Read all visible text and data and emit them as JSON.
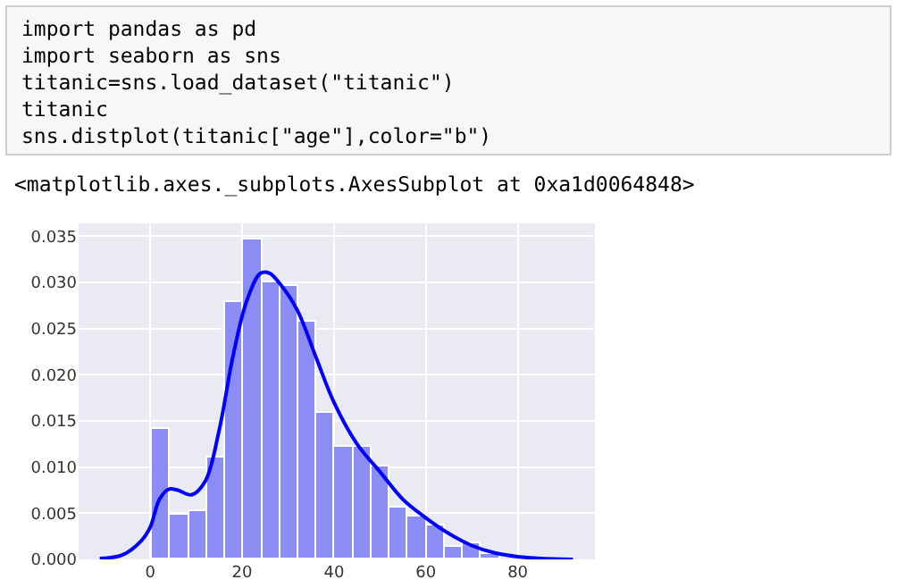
{
  "chart_data": {
    "type": "histogram",
    "annotations": [
      "import pandas as pd",
      "import seaborn as sns",
      "titanic=sns.load_dataset(\"titanic\")",
      "titanic",
      "sns.distplot(titanic[\"age\"],color=\"b\")",
      "<matplotlib.axes._subplots.AxesSubplot at 0xa1d0064848>"
    ],
    "bins": [
      0.4,
      4.4,
      8.4,
      12.3,
      16.3,
      20.3,
      24.3,
      28.3,
      32.2,
      36.2,
      40.2,
      44.2,
      48.2,
      52.1,
      56.1,
      60.1,
      64.1,
      68.1,
      72.0,
      76.0
    ],
    "values": [
      0.0141,
      0.0048,
      0.0052,
      0.011,
      0.0279,
      0.0346,
      0.03,
      0.0297,
      0.0257,
      0.0158,
      0.0122,
      0.0122,
      0.0101,
      0.0056,
      0.0046,
      0.0037,
      0.0014,
      0.0017,
      0.0005
    ],
    "color": "#8c8cf5",
    "series": [
      {
        "type": "line",
        "color": "#0000ff",
        "x": [
          -11,
          -6,
          -2,
          0,
          2,
          4,
          6,
          9,
          12,
          15,
          18,
          21,
          24,
          26,
          28,
          32,
          36,
          40,
          45,
          50,
          55,
          60,
          65,
          70,
          75,
          80,
          85,
          92
        ],
        "values": [
          0.0001,
          0.0005,
          0.002,
          0.0035,
          0.0065,
          0.0076,
          0.0075,
          0.007,
          0.0085,
          0.014,
          0.022,
          0.028,
          0.031,
          0.031,
          0.03,
          0.027,
          0.022,
          0.017,
          0.0125,
          0.0095,
          0.0065,
          0.0045,
          0.0028,
          0.0015,
          0.0007,
          0.0003,
          0.0001,
          0.0
        ]
      }
    ],
    "xlim": [
      -15.6,
      96.8
    ],
    "xticks": [
      0,
      20,
      40,
      60,
      80
    ],
    "ylim": [
      0,
      0.0364
    ],
    "yticks": [
      {
        "value": 0,
        "label": "0.000"
      },
      {
        "value": 0.005,
        "label": "0.005"
      },
      {
        "value": 0.01,
        "label": "0.010"
      },
      {
        "value": 0.015,
        "label": "0.015"
      },
      {
        "value": 0.02,
        "label": "0.020"
      },
      {
        "value": 0.025,
        "label": "0.025"
      },
      {
        "value": 0.03,
        "label": "0.030"
      },
      {
        "value": 0.035,
        "label": "0.035"
      }
    ],
    "grid": true
  }
}
